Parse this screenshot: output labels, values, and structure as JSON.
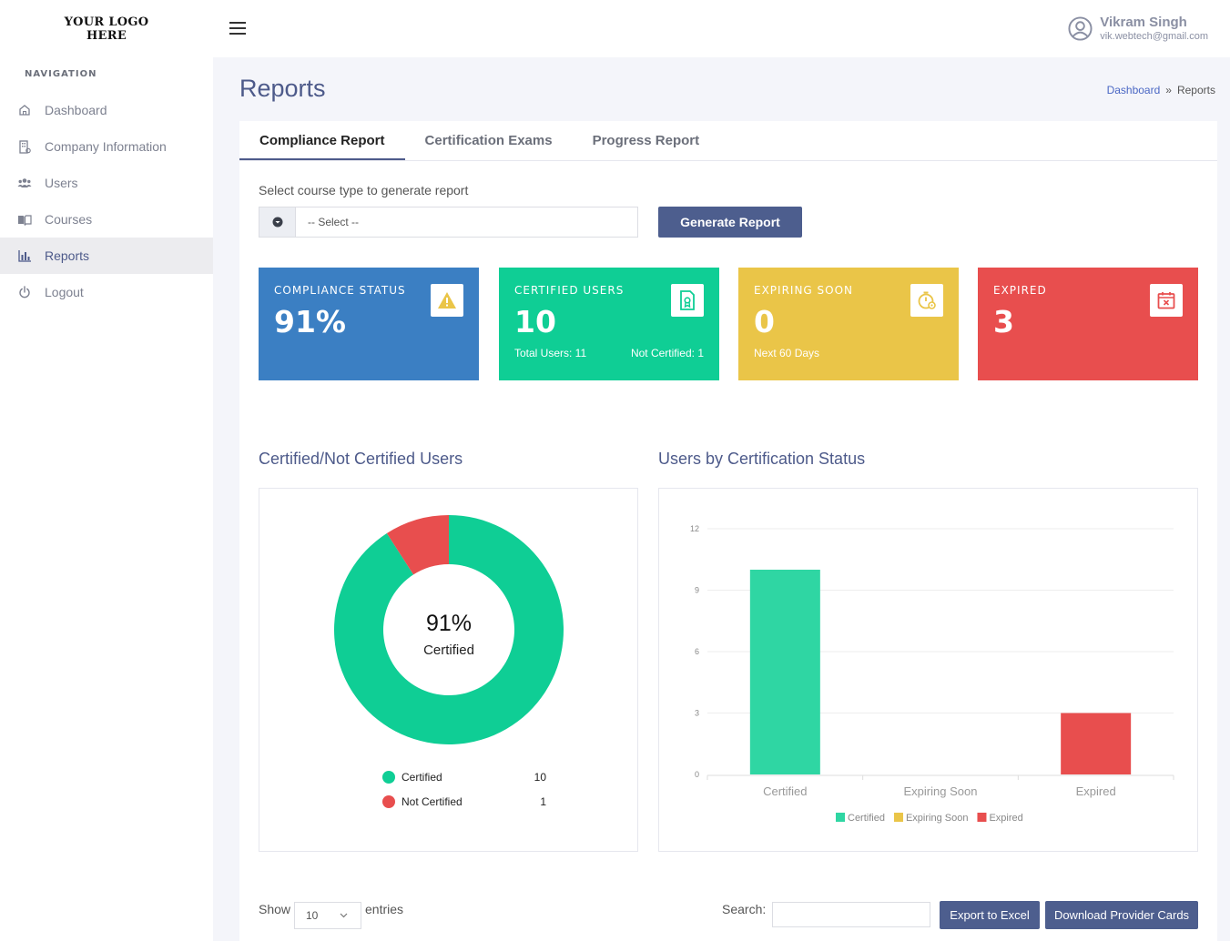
{
  "logo": {
    "line1": "YOUR LOGO",
    "line2": "HERE"
  },
  "nav": {
    "heading": "NAVIGATION",
    "items": [
      {
        "label": "Dashboard",
        "icon": "home-icon"
      },
      {
        "label": "Company Information",
        "icon": "building-icon"
      },
      {
        "label": "Users",
        "icon": "users-icon"
      },
      {
        "label": "Courses",
        "icon": "book-icon"
      },
      {
        "label": "Reports",
        "icon": "bar-chart-icon",
        "active": true
      },
      {
        "label": "Logout",
        "icon": "power-icon"
      }
    ]
  },
  "header": {
    "user_name": "Vikram Singh",
    "user_email": "vik.webtech@gmail.com"
  },
  "page": {
    "title": "Reports",
    "breadcrumb": {
      "parent": "Dashboard",
      "separator": "»",
      "current": "Reports"
    }
  },
  "tabs": [
    {
      "label": "Compliance Report",
      "active": true
    },
    {
      "label": "Certification Exams"
    },
    {
      "label": "Progress Report"
    }
  ],
  "form": {
    "label": "Select course type to generate report",
    "select_value": "-- Select --",
    "button": "Generate Report"
  },
  "stats": [
    {
      "label": "COMPLIANCE STATUS",
      "value": "91%",
      "color": "#3b7fc3",
      "icon": "warning-icon"
    },
    {
      "label": "CERTIFIED USERS",
      "value": "10",
      "color": "#0fce95",
      "icon": "certificate-icon",
      "sub_left": "Total Users: 11",
      "sub_right": "Not Certified: 1"
    },
    {
      "label": "EXPIRING SOON",
      "value": "0",
      "color": "#eac548",
      "icon": "timer-icon",
      "sub_left": "Next 60 Days"
    },
    {
      "label": "EXPIRED",
      "value": "3",
      "color": "#e84e4e",
      "icon": "calendar-x-icon"
    }
  ],
  "donut": {
    "title": "Certified/Not Certified Users",
    "center_value": "91%",
    "center_label": "Certified",
    "legend": [
      {
        "label": "Certified",
        "value": "10",
        "color": "#0fce95"
      },
      {
        "label": "Not Certified",
        "value": "1",
        "color": "#e84e4e"
      }
    ]
  },
  "bar": {
    "title": "Users by Certification Status"
  },
  "chart_data": [
    {
      "type": "pie",
      "categories": [
        "Certified",
        "Not Certified"
      ],
      "values": [
        10,
        1
      ],
      "colors": [
        "#0fce95",
        "#e84e4e"
      ]
    },
    {
      "type": "bar",
      "categories": [
        "Certified",
        "Expiring Soon",
        "Expired"
      ],
      "values": [
        10,
        0,
        3
      ],
      "colors": [
        "#2fd6a3",
        "#eac548",
        "#e84e4e"
      ],
      "ylim": [
        0,
        12
      ],
      "yticks": [
        0,
        3,
        6,
        9,
        12
      ],
      "legend": [
        "Certified",
        "Expiring Soon",
        "Expired"
      ],
      "legend_position": "bottom",
      "grid": false
    }
  ],
  "table_controls": {
    "show": "Show",
    "entries_value": "10",
    "entries": "entries",
    "search": "Search:",
    "export_button": "Export to Excel",
    "download_button": "Download Provider Cards"
  }
}
